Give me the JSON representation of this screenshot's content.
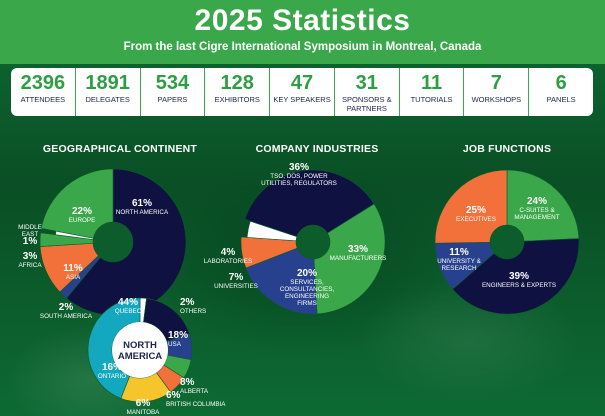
{
  "header": {
    "title": "2025 Statistics",
    "subtitle": "From the last Cigre International Symposium in Montreal, Canada"
  },
  "colors": {
    "green": "#3aa84a",
    "navy": "#0f1140",
    "orange": "#f2703a",
    "blue": "#27418f",
    "white": "#ffffff",
    "teal": "#13a8bf",
    "yellow": "#f6c42b"
  },
  "stats": [
    {
      "value": "2396",
      "label": "ATTENDEES"
    },
    {
      "value": "1891",
      "label": "DELEGATES"
    },
    {
      "value": "534",
      "label": "PAPERS"
    },
    {
      "value": "128",
      "label": "EXHIBITORS"
    },
    {
      "value": "47",
      "label": "KEY SPEAKERS"
    },
    {
      "value": "31",
      "label": "SPONSORS & PARTNERS"
    },
    {
      "value": "11",
      "label": "TUTORIALS"
    },
    {
      "value": "7",
      "label": "WORKSHOPS"
    },
    {
      "value": "6",
      "label": "PANELS"
    }
  ],
  "chart_data": [
    {
      "type": "pie",
      "title": "GEOGRAPHICAL CONTINENT",
      "slices": [
        {
          "label": "NORTH AMERICA",
          "value": 61,
          "pct": "61%",
          "color": "#0f1140"
        },
        {
          "label": "SOUTH AMERICA",
          "value": 2,
          "pct": "2%",
          "color": "#27418f"
        },
        {
          "label": "ASIA",
          "value": 11,
          "pct": "11%",
          "color": "#f2703a"
        },
        {
          "label": "AFRICA",
          "value": 3,
          "pct": "3%",
          "color": "#3aa84a"
        },
        {
          "label": "MIDDLE EAST",
          "value": 1,
          "pct": "1%",
          "color": "#ffffff"
        },
        {
          "label": "EUROPE",
          "value": 22,
          "pct": "22%",
          "color": "#3aa84a"
        }
      ]
    },
    {
      "type": "pie",
      "title": "NORTH AMERICA",
      "slices": [
        {
          "label": "OTHERS",
          "value": 2,
          "pct": "2%",
          "color": "#ffffff"
        },
        {
          "label": "USA",
          "value": 18,
          "pct": "18%",
          "color": "#0f1140"
        },
        {
          "label": "ALBERTA",
          "value": 8,
          "pct": "8%",
          "color": "#27418f"
        },
        {
          "label": "BRITISH COLUMBIA",
          "value": 6,
          "pct": "6%",
          "color": "#3aa84a"
        },
        {
          "label": "MANITOBA",
          "value": 6,
          "pct": "6%",
          "color": "#f2703a"
        },
        {
          "label": "ONTARIO",
          "value": 16,
          "pct": "16%",
          "color": "#f6c42b"
        },
        {
          "label": "QUEBEC",
          "value": 44,
          "pct": "44%",
          "color": "#13a8bf"
        }
      ]
    },
    {
      "type": "pie",
      "title": "COMPANY INDUSTRIES",
      "slices": [
        {
          "label": "MANUFACTURERS",
          "value": 33,
          "pct": "33%",
          "color": "#3aa84a"
        },
        {
          "label": "SERVICES, CONSULTANCIES, ENGINEERING FIRMS",
          "value": 20,
          "pct": "20%",
          "color": "#27418f"
        },
        {
          "label": "UNIVERSITIES",
          "value": 7,
          "pct": "7%",
          "color": "#f2703a"
        },
        {
          "label": "LABORATORIES",
          "value": 4,
          "pct": "4%",
          "color": "#ffffff"
        },
        {
          "label": "TSO, DOS, POWER UTILITIES, REGULATORS",
          "value": 36,
          "pct": "36%",
          "color": "#0f1140"
        }
      ]
    },
    {
      "type": "pie",
      "title": "JOB FUNCTIONS",
      "slices": [
        {
          "label": "C-SUITES & MANAGEMENT",
          "value": 24,
          "pct": "24%",
          "color": "#3aa84a"
        },
        {
          "label": "ENGINEERS & EXPERTS",
          "value": 39,
          "pct": "39%",
          "color": "#0f1140"
        },
        {
          "label": "UNIVERSITY & RESEARCH",
          "value": 11,
          "pct": "11%",
          "color": "#27418f"
        },
        {
          "label": "EXECUTIVES",
          "value": 25,
          "pct": "25%",
          "color": "#f2703a"
        }
      ]
    }
  ]
}
